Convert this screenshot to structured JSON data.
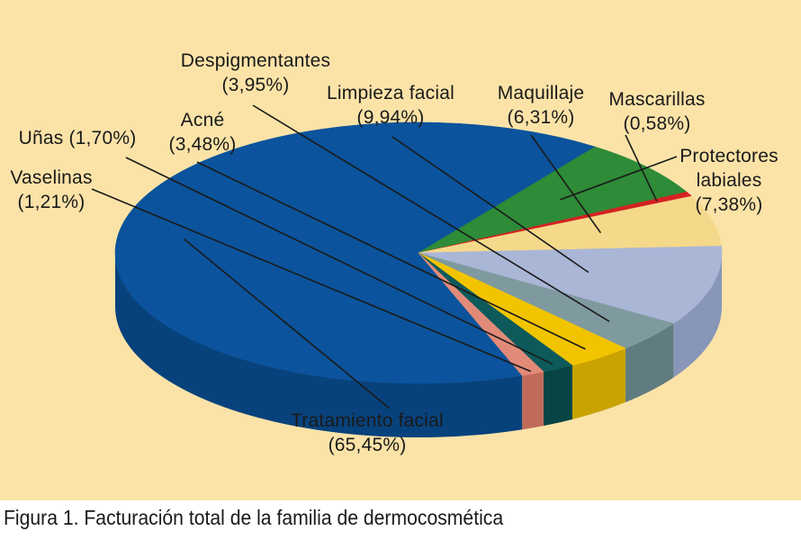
{
  "chart_data": {
    "type": "pie",
    "title": "",
    "slices": [
      {
        "label_lines": [
          "Tratamiento facial",
          "(65,45%)"
        ],
        "value": 65.45,
        "color": "#0b539c",
        "side": "#08427c"
      },
      {
        "label_lines": [
          "Protectores",
          "labiales",
          "(7,38%)"
        ],
        "value": 7.38,
        "color": "#2e8b37",
        "side": "#226a2a"
      },
      {
        "label_lines": [
          "Mascarillas",
          "(0,58%)"
        ],
        "value": 0.58,
        "color": "#d42222",
        "side": "#a81818"
      },
      {
        "label_lines": [
          "Maquillaje",
          "(6,31%)"
        ],
        "value": 6.31,
        "color": "#f5d98a",
        "side": "#d9bd6c"
      },
      {
        "label_lines": [
          "Limpieza facial",
          "(9,94%)"
        ],
        "value": 9.94,
        "color": "#aab6d6",
        "side": "#8896b8"
      },
      {
        "label_lines": [
          "Despigmentantes",
          "(3,95%)"
        ],
        "value": 3.95,
        "color": "#7f9a9e",
        "side": "#617c80"
      },
      {
        "label_lines": [
          "Acné",
          "(3,48%)"
        ],
        "value": 3.48,
        "color": "#f2c400",
        "side": "#c9a300"
      },
      {
        "label_lines": [
          "Uñas (1,70%)"
        ],
        "value": 1.7,
        "color": "#0e5a5a",
        "side": "#094444"
      },
      {
        "label_lines": [
          "Vaselinas",
          "(1,21%)"
        ],
        "value": 1.21,
        "color": "#e28a78",
        "side": "#c06b5a"
      }
    ]
  },
  "caption": "Figura 1. Facturación total de la familia de dermocosmética"
}
